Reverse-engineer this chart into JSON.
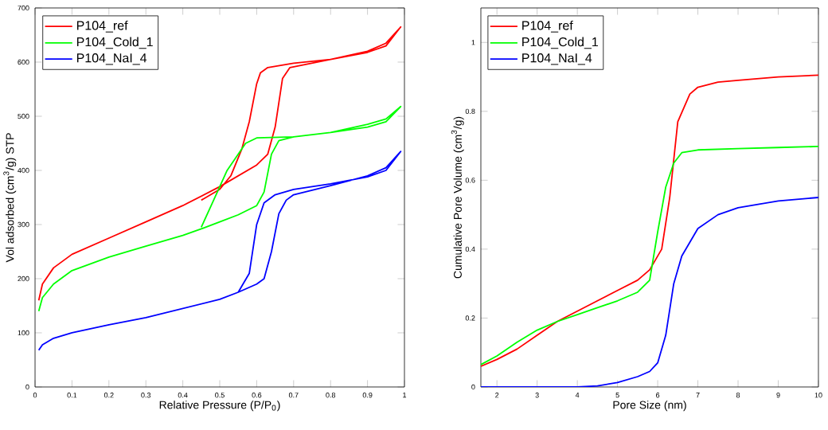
{
  "chart_data": [
    {
      "type": "line",
      "xlabel": "Relative Pressure (P/P$_{0}$)",
      "ylabel": "Vol adsorbed (cm$^{3}$/g) STP",
      "xlim": [
        0,
        1
      ],
      "ylim": [
        0,
        700
      ],
      "xticks": [
        0,
        0.1,
        0.2,
        0.3,
        0.4,
        0.5,
        0.6,
        0.7,
        0.8,
        0.9,
        1
      ],
      "yticks": [
        0,
        100,
        200,
        300,
        400,
        500,
        600,
        700
      ],
      "legend": "top left",
      "grid": false,
      "marker": "none",
      "line_style": "solid",
      "series": [
        {
          "name": "P104_ref",
          "color": "#ff0000",
          "x": [
            0.01,
            0.02,
            0.05,
            0.1,
            0.2,
            0.3,
            0.4,
            0.5,
            0.6,
            0.63,
            0.65,
            0.67,
            0.69,
            0.8,
            0.9,
            0.95,
            0.99,
            0.95,
            0.9,
            0.8,
            0.7,
            0.63,
            0.61,
            0.6,
            0.58,
            0.56,
            0.53,
            0.5,
            0.45
          ],
          "values": [
            160,
            190,
            220,
            245,
            275,
            305,
            335,
            370,
            410,
            430,
            480,
            570,
            590,
            605,
            620,
            635,
            665,
            630,
            618,
            605,
            598,
            590,
            580,
            560,
            490,
            440,
            390,
            365,
            345
          ]
        },
        {
          "name": "P104_Cold_1",
          "color": "#00ff00",
          "x": [
            0.01,
            0.02,
            0.05,
            0.1,
            0.2,
            0.3,
            0.4,
            0.45,
            0.5,
            0.55,
            0.6,
            0.62,
            0.64,
            0.66,
            0.7,
            0.8,
            0.9,
            0.95,
            0.99,
            0.95,
            0.9,
            0.8,
            0.7,
            0.6,
            0.57,
            0.52,
            0.48,
            0.45
          ],
          "values": [
            140,
            165,
            190,
            215,
            240,
            260,
            280,
            292,
            305,
            318,
            335,
            360,
            430,
            455,
            462,
            470,
            485,
            495,
            518,
            490,
            480,
            470,
            462,
            460,
            450,
            400,
            340,
            295
          ]
        },
        {
          "name": "P104_NaI_4",
          "color": "#0000ff",
          "x": [
            0.01,
            0.02,
            0.05,
            0.1,
            0.2,
            0.3,
            0.4,
            0.5,
            0.55,
            0.6,
            0.62,
            0.64,
            0.66,
            0.68,
            0.7,
            0.8,
            0.9,
            0.95,
            0.99,
            0.95,
            0.9,
            0.8,
            0.7,
            0.65,
            0.62,
            0.6,
            0.58,
            0.55
          ],
          "values": [
            68,
            78,
            90,
            100,
            115,
            128,
            145,
            162,
            175,
            190,
            200,
            250,
            320,
            345,
            355,
            372,
            390,
            405,
            435,
            400,
            388,
            375,
            365,
            355,
            340,
            300,
            210,
            175
          ]
        }
      ]
    },
    {
      "type": "line",
      "xlabel": "Pore Size (nm)",
      "ylabel": "Cumulative Pore Volume (cm$^{3}$/g)",
      "xlim": [
        1.6,
        10
      ],
      "ylim": [
        0,
        1.1
      ],
      "xticks": [
        2,
        3,
        4,
        5,
        6,
        7,
        8,
        9,
        10
      ],
      "yticks": [
        0,
        0.2,
        0.4,
        0.6,
        0.8,
        1
      ],
      "legend": "top left",
      "grid": false,
      "marker": "none",
      "line_style": "solid",
      "series": [
        {
          "name": "P104_ref",
          "color": "#ff0000",
          "x": [
            1.6,
            2,
            2.5,
            3,
            3.5,
            4,
            4.5,
            5,
            5.5,
            5.8,
            6.1,
            6.3,
            6.5,
            6.8,
            7,
            7.5,
            8,
            9,
            10
          ],
          "values": [
            0.06,
            0.08,
            0.11,
            0.15,
            0.19,
            0.22,
            0.25,
            0.28,
            0.31,
            0.34,
            0.4,
            0.55,
            0.77,
            0.85,
            0.87,
            0.885,
            0.89,
            0.9,
            0.905
          ]
        },
        {
          "name": "P104_Cold_1",
          "color": "#00ff00",
          "x": [
            1.6,
            2,
            2.5,
            3,
            3.5,
            4,
            4.5,
            5,
            5.5,
            5.8,
            6,
            6.2,
            6.4,
            6.6,
            7,
            8,
            9,
            10
          ],
          "values": [
            0.065,
            0.09,
            0.13,
            0.165,
            0.19,
            0.21,
            0.23,
            0.25,
            0.275,
            0.31,
            0.45,
            0.58,
            0.65,
            0.68,
            0.688,
            0.692,
            0.695,
            0.698
          ]
        },
        {
          "name": "P104_NaI_4",
          "color": "#0000ff",
          "x": [
            1.6,
            3,
            4,
            4.5,
            5,
            5.5,
            5.8,
            6,
            6.2,
            6.4,
            6.6,
            6.8,
            7,
            7.5,
            8,
            9,
            10
          ],
          "values": [
            0,
            0,
            0,
            0.003,
            0.013,
            0.03,
            0.045,
            0.07,
            0.15,
            0.3,
            0.38,
            0.42,
            0.46,
            0.5,
            0.52,
            0.54,
            0.55
          ]
        }
      ]
    }
  ]
}
